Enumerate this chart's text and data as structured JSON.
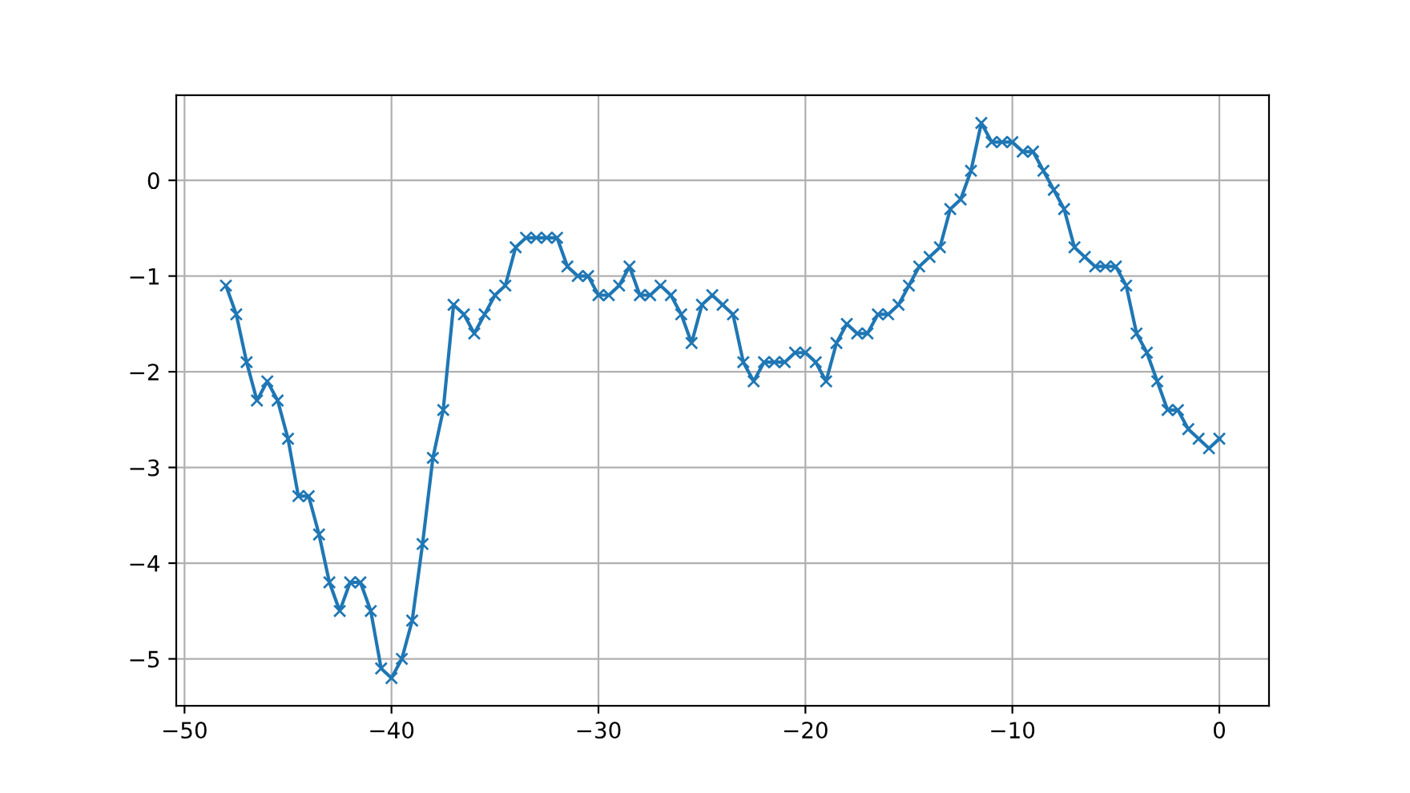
{
  "chart_data": {
    "type": "line",
    "marker": "cross",
    "grid": true,
    "xlim": [
      -50.4,
      2.4
    ],
    "ylim": [
      -5.49,
      0.89
    ],
    "xticks": [
      {
        "value": -50,
        "label": "−50"
      },
      {
        "value": -40,
        "label": "−40"
      },
      {
        "value": -30,
        "label": "−30"
      },
      {
        "value": -20,
        "label": "−20"
      },
      {
        "value": -10,
        "label": "−10"
      },
      0
    ],
    "yticks": [
      {
        "value": -5,
        "label": "−5"
      },
      {
        "value": -4,
        "label": "−4"
      },
      {
        "value": -3,
        "label": "−3"
      },
      {
        "value": -2,
        "label": "−2"
      },
      {
        "value": -1,
        "label": "−1"
      },
      0
    ],
    "x": [
      -48,
      -47.5,
      -47,
      -46.5,
      -46,
      -45.5,
      -45,
      -44.5,
      -44,
      -43.5,
      -43,
      -42.5,
      -42,
      -41.5,
      -41,
      -40.5,
      -40,
      -39.5,
      -39,
      -38.5,
      -38,
      -37.5,
      -37,
      -36.5,
      -36,
      -35.5,
      -35,
      -34.5,
      -34,
      -33.5,
      -33,
      -32.5,
      -32,
      -31.5,
      -31,
      -30.5,
      -30,
      -29.5,
      -29,
      -28.5,
      -28,
      -27.5,
      -27,
      -26.5,
      -26,
      -25.5,
      -25,
      -24.5,
      -24,
      -23.5,
      -23,
      -22.5,
      -22,
      -21.5,
      -21,
      -20.5,
      -20,
      -19.5,
      -19,
      -18.5,
      -18,
      -17.5,
      -17,
      -16.5,
      -16,
      -15.5,
      -15,
      -14.5,
      -14,
      -13.5,
      -13,
      -12.5,
      -12,
      -11.5,
      -11,
      -10.5,
      -10,
      -9.5,
      -9,
      -8.5,
      -8,
      -7.5,
      -7,
      -6.5,
      -6,
      -5.5,
      -5,
      -4.5,
      -4,
      -3.5,
      -3,
      -2.5,
      -2,
      -1.5,
      -1,
      -0.5,
      0
    ],
    "series": [
      {
        "color": "#1f77b4",
        "values": [
          -1.1,
          -1.4,
          -1.9,
          -2.3,
          -2.1,
          -2.3,
          -2.7,
          -3.3,
          -3.3,
          -3.7,
          -4.2,
          -4.5,
          -4.2,
          -4.2,
          -4.5,
          -5.1,
          -5.2,
          -5.0,
          -4.6,
          -3.8,
          -2.9,
          -2.4,
          -1.3,
          -1.4,
          -1.6,
          -1.4,
          -1.2,
          -1.1,
          -0.7,
          -0.6,
          -0.6,
          -0.6,
          -0.6,
          -0.9,
          -1.0,
          -1.0,
          -1.2,
          -1.2,
          -1.1,
          -0.9,
          -1.2,
          -1.2,
          -1.1,
          -1.2,
          -1.4,
          -1.7,
          -1.3,
          -1.2,
          -1.3,
          -1.4,
          -1.9,
          -2.1,
          -1.9,
          -1.9,
          -1.9,
          -1.8,
          -1.8,
          -1.9,
          -2.1,
          -1.7,
          -1.5,
          -1.6,
          -1.6,
          -1.4,
          -1.4,
          -1.3,
          -1.1,
          -0.9,
          -0.8,
          -0.7,
          -0.3,
          -0.2,
          0.1,
          0.6,
          0.4,
          0.4,
          0.4,
          0.3,
          0.3,
          0.1,
          -0.1,
          -0.3,
          -0.7,
          -0.8,
          -0.9,
          -0.9,
          -0.9,
          -1.1,
          -1.6,
          -1.8,
          -2.1,
          -2.4,
          -2.4,
          -2.6,
          -2.7,
          -2.8,
          -2.7
        ]
      }
    ]
  }
}
